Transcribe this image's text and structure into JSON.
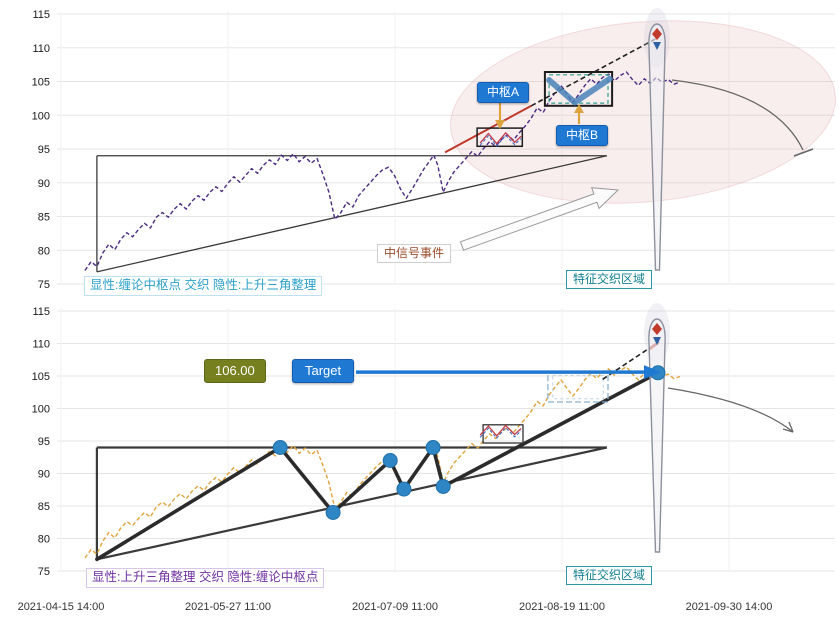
{
  "chart_data": {
    "type": "line",
    "title": "",
    "x_axis": {
      "tick_labels": [
        "2021-04-15 14:00",
        "2021-05-27 11:00",
        "2021-07-09 11:00",
        "2021-08-19 11:00",
        "2021-09-30 14:00"
      ]
    },
    "y_axis": {
      "min": 75,
      "max": 115,
      "ticks": [
        75,
        80,
        85,
        90,
        95,
        100,
        105,
        110,
        115
      ]
    },
    "panels": [
      {
        "name": "top",
        "series_style": "dashed",
        "analysis": "chan-pivot-primary"
      },
      {
        "name": "bottom",
        "series_style": "dashed",
        "analysis": "ascending-triangle-primary"
      }
    ],
    "series": [
      {
        "name": "price",
        "x_unit": "percent-of-range",
        "points": [
          [
            0,
            77
          ],
          [
            1,
            78.3
          ],
          [
            2,
            77.6
          ],
          [
            3,
            79.6
          ],
          [
            4,
            80.9
          ],
          [
            5,
            80.1
          ],
          [
            6,
            81.6
          ],
          [
            7,
            82.6
          ],
          [
            8,
            82
          ],
          [
            9,
            83.1
          ],
          [
            10,
            84
          ],
          [
            11,
            83.3
          ],
          [
            12,
            84.9
          ],
          [
            13,
            85.6
          ],
          [
            14,
            84.9
          ],
          [
            15,
            86.1
          ],
          [
            16,
            86.9
          ],
          [
            17,
            86.1
          ],
          [
            18,
            87.3
          ],
          [
            19,
            88.1
          ],
          [
            20,
            87.4
          ],
          [
            21,
            88.6
          ],
          [
            22,
            89.4
          ],
          [
            23,
            88.7
          ],
          [
            24,
            89.9
          ],
          [
            25,
            90.9
          ],
          [
            26,
            90.1
          ],
          [
            27,
            91.1
          ],
          [
            28,
            92.1
          ],
          [
            29,
            91.4
          ],
          [
            30,
            92.6
          ],
          [
            31,
            93.4
          ],
          [
            32,
            92.7
          ],
          [
            33,
            94.1
          ],
          [
            34,
            93.3
          ],
          [
            35,
            94.3
          ],
          [
            36,
            93.1
          ],
          [
            37,
            93.9
          ],
          [
            38,
            92.9
          ],
          [
            39,
            93.6
          ],
          [
            40,
            91.2
          ],
          [
            41,
            88.6
          ],
          [
            42,
            84.6
          ],
          [
            43,
            85.6
          ],
          [
            44,
            87.1
          ],
          [
            45,
            86.4
          ],
          [
            46,
            88.1
          ],
          [
            47,
            89.1
          ],
          [
            48,
            90.1
          ],
          [
            49,
            91.1
          ],
          [
            50,
            91.9
          ],
          [
            51,
            92.3
          ],
          [
            52,
            91.1
          ],
          [
            53,
            89.1
          ],
          [
            54,
            87.7
          ],
          [
            55,
            89.1
          ],
          [
            56,
            90.6
          ],
          [
            57,
            92.1
          ],
          [
            58,
            93.3
          ],
          [
            58.6,
            94.1
          ],
          [
            59.3,
            92.6
          ],
          [
            60.2,
            88.6
          ],
          [
            61,
            90.1
          ],
          [
            62,
            91.6
          ],
          [
            63,
            92.6
          ],
          [
            64,
            93.6
          ],
          [
            65,
            94.6
          ],
          [
            66,
            93.9
          ],
          [
            67,
            95.1
          ],
          [
            68,
            96.1
          ],
          [
            69,
            95.4
          ],
          [
            70,
            96.4
          ],
          [
            71,
            97.1
          ],
          [
            72,
            96.3
          ],
          [
            73,
            97.4
          ],
          [
            74,
            98.4
          ],
          [
            75,
            99.6
          ],
          [
            76,
            101.1
          ],
          [
            77,
            100.4
          ],
          [
            78,
            102.1
          ],
          [
            79,
            103.3
          ],
          [
            80,
            104.4
          ],
          [
            81,
            103.1
          ],
          [
            82,
            101.9
          ],
          [
            83,
            103.1
          ],
          [
            84,
            104.4
          ],
          [
            85,
            105.4
          ],
          [
            86,
            104.6
          ],
          [
            87,
            105.6
          ],
          [
            88,
            106.1
          ],
          [
            89,
            105.1
          ],
          [
            90,
            105.9
          ],
          [
            91,
            106.4
          ],
          [
            92,
            105.3
          ],
          [
            93,
            104.4
          ],
          [
            94,
            105.4
          ],
          [
            95,
            104.7
          ],
          [
            96,
            105.6
          ],
          [
            97,
            104.9
          ],
          [
            98,
            105.3
          ],
          [
            99,
            104.6
          ],
          [
            100,
            104.9
          ]
        ]
      }
    ],
    "zigzag": {
      "points": [
        [
          2,
          76.8
        ],
        [
          32.8,
          94
        ],
        [
          41.7,
          84
        ],
        [
          51.3,
          92
        ],
        [
          53.6,
          87.6
        ],
        [
          58.5,
          94
        ],
        [
          60.2,
          88
        ],
        [
          96.3,
          105.5
        ]
      ],
      "marker_points": [
        [
          32.8,
          94
        ],
        [
          41.7,
          84
        ],
        [
          51.3,
          92
        ],
        [
          53.6,
          87.6
        ],
        [
          58.5,
          94
        ],
        [
          60.2,
          88
        ],
        [
          96.3,
          105.5
        ]
      ]
    },
    "triangle": {
      "left_t": 2,
      "apex_t": 87.7,
      "top_price": 94,
      "base_start_price": 76.8
    },
    "pivot_zones": {
      "top": [
        {
          "label": "中枢A",
          "t": [
            65.9,
            73.5
          ],
          "price": [
            95.4,
            98.1
          ]
        },
        {
          "label": "中枢B",
          "t": [
            77.3,
            88.6
          ],
          "price": [
            101.4,
            106.4
          ]
        }
      ],
      "bottom": [
        {
          "t": [
            66.9,
            73.6
          ],
          "price": [
            94.7,
            97.5
          ]
        },
        {
          "t": [
            77.8,
            87.9
          ],
          "price": [
            101.0,
            105.6
          ]
        }
      ]
    },
    "pivot_wiggle": [
      [
        66.4,
        95.9
      ],
      [
        67.8,
        97.3
      ],
      [
        69.2,
        95.8
      ],
      [
        70.7,
        97.4
      ],
      [
        72.2,
        96.0
      ],
      [
        73.3,
        96.9
      ]
    ],
    "pivot_b_wave": [
      [
        78.0,
        105.2
      ],
      [
        82.3,
        101.9
      ],
      [
        88.2,
        105.4
      ]
    ],
    "projection": {
      "top_red": [
        [
          60.5,
          94.5
        ],
        [
          75,
          101.4
        ]
      ],
      "top_dash": [
        [
          75,
          101.4
        ],
        [
          96.3,
          111.5
        ]
      ],
      "bottom_dash": [
        [
          87,
          104.5
        ],
        [
          96.5,
          110.3
        ]
      ]
    },
    "target": {
      "value": 106.0
    },
    "annotations": {
      "pivot_a": "中枢A",
      "pivot_b": "中枢B",
      "signal_event": "中信号事件",
      "top_caption": "显性:缠论中枢点 交织 隐性:上升三角整理",
      "bottom_caption": "显性:上升三角整理 交织 隐性:缠论中枢点",
      "feature_zone": "特征交织区域",
      "target_label": "Target",
      "target_price": "106.00"
    },
    "style": {
      "series_top_color": "#4b2a82",
      "series_bottom_color": "#e2a33c",
      "zigzag_color": "#2b2b2b",
      "marker_color": "#2f86c5",
      "triangle_color": "#3a3a3a",
      "accent_blue": "#1f79d2",
      "teal": "#12808f",
      "purple_caption": "#7030a0",
      "cyan_caption": "#2aa0c8",
      "olive": "#76801f",
      "signal_text": "#9a4a28",
      "highlight_ellipse": "#e4b0b0",
      "projection_red": "#c0392b",
      "pivot_wave_blue": "#4a81b8",
      "arrow_orange": "#dba43f"
    }
  }
}
